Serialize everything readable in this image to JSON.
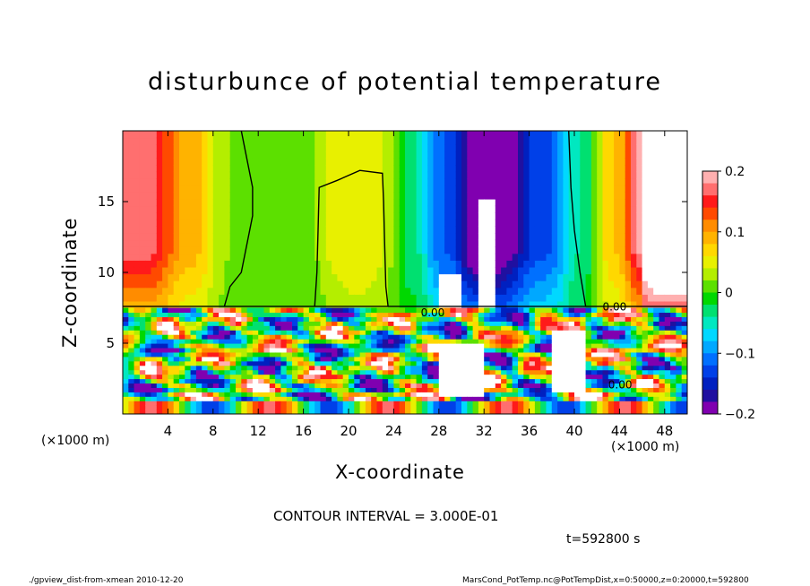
{
  "chart_data": {
    "type": "heatmap",
    "title": "disturbunce of potential temperature",
    "xlabel": "X-coordinate",
    "ylabel": "Z-coordinate",
    "x_unit": "(×1000 m)",
    "y_unit": "(×1000 m)",
    "xlim": [
      0,
      50
    ],
    "ylim": [
      0,
      20
    ],
    "x_ticks": [
      "4",
      "8",
      "12",
      "16",
      "20",
      "24",
      "28",
      "32",
      "36",
      "40",
      "44",
      "48"
    ],
    "y_ticks": [
      "5",
      "10",
      "15"
    ],
    "colorbar": {
      "range": [
        -0.2,
        0.2
      ],
      "ticks": [
        "0.2",
        "0.1",
        "0",
        "−0.1",
        "−0.2"
      ],
      "colors": [
        "#ffb0b0",
        "#ff6f6f",
        "#ff1a1a",
        "#ff4a00",
        "#ff8c00",
        "#ffb300",
        "#ffd800",
        "#e8f000",
        "#b4ee00",
        "#5ce000",
        "#00d800",
        "#00e070",
        "#00e8c0",
        "#00d8ff",
        "#00a8ff",
        "#0070ff",
        "#0040e8",
        "#0020c0",
        "#2010a0",
        "#8000b0"
      ]
    },
    "contour_interval": "CONTOUR INTERVAL = 3.000E-01",
    "contour_label": "0.00",
    "upper_layer_regions": [
      {
        "x0": 0,
        "x1": 4,
        "value": 0.17
      },
      {
        "x0": 4,
        "x1": 8,
        "value": 0.09
      },
      {
        "x0": 8,
        "x1": 16,
        "value": 0.0
      },
      {
        "x0": 16,
        "x1": 18,
        "value": 0.02
      },
      {
        "x0": 18,
        "x1": 24,
        "value": 0.06
      },
      {
        "x0": 24,
        "x1": 27,
        "value": -0.03
      },
      {
        "x0": 27,
        "x1": 30,
        "value": -0.12
      },
      {
        "x0": 30,
        "x1": 35,
        "value": -0.22
      },
      {
        "x0": 35,
        "x1": 39,
        "value": -0.13
      },
      {
        "x0": 39,
        "x1": 42,
        "value": -0.04
      },
      {
        "x0": 42,
        "x1": 45,
        "value": 0.08
      },
      {
        "x0": 45,
        "x1": 50,
        "value": 0.22
      }
    ]
  },
  "labels": {
    "time": "t=592800 s",
    "footer_left": "./gpview_dist-from-xmean  2010-12-20",
    "footer_right": "MarsCond_PotTemp.nc@PotTempDist,x=0:50000,z=0:20000,t=592800"
  }
}
